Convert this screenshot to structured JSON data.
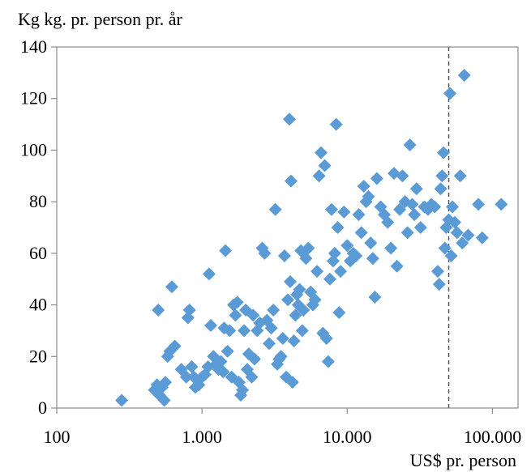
{
  "chart_data": {
    "type": "scatter",
    "title": "",
    "ylabel": "Kg kg. pr. person pr. år",
    "xlabel": "US$ pr. person",
    "xscale": "log",
    "xlim": [
      100,
      150000
    ],
    "ylim": [
      0,
      140
    ],
    "xticks": [
      100,
      1000,
      10000,
      100000
    ],
    "xtick_labels": [
      "100",
      "1.000",
      "10.000",
      "100.000"
    ],
    "yticks": [
      0,
      20,
      40,
      60,
      80,
      100,
      120,
      140
    ],
    "ytick_labels": [
      "0",
      "20",
      "40",
      "60",
      "80",
      "100",
      "120",
      "140"
    ],
    "grid": false,
    "marker": "diamond",
    "marker_color": "#5b9bd5",
    "reference_line": {
      "x": 50000,
      "style": "dashed",
      "color": "#555555"
    },
    "points": [
      [
        280,
        3
      ],
      [
        470,
        7
      ],
      [
        490,
        9
      ],
      [
        510,
        5
      ],
      [
        530,
        8
      ],
      [
        550,
        3
      ],
      [
        560,
        10
      ],
      [
        580,
        20
      ],
      [
        600,
        22
      ],
      [
        620,
        47
      ],
      [
        500,
        38
      ],
      [
        650,
        24
      ],
      [
        720,
        15
      ],
      [
        780,
        12
      ],
      [
        800,
        35
      ],
      [
        820,
        38
      ],
      [
        850,
        16
      ],
      [
        880,
        12
      ],
      [
        900,
        8
      ],
      [
        950,
        9
      ],
      [
        1000,
        12
      ],
      [
        1050,
        13
      ],
      [
        1100,
        16
      ],
      [
        1120,
        52
      ],
      [
        1150,
        32
      ],
      [
        1200,
        20
      ],
      [
        1250,
        17
      ],
      [
        1300,
        15
      ],
      [
        1350,
        18
      ],
      [
        1400,
        14
      ],
      [
        1420,
        31
      ],
      [
        1450,
        61
      ],
      [
        1500,
        22
      ],
      [
        1550,
        30
      ],
      [
        1600,
        12
      ],
      [
        1650,
        40
      ],
      [
        1700,
        36
      ],
      [
        1750,
        41
      ],
      [
        1800,
        10
      ],
      [
        1850,
        5
      ],
      [
        1900,
        7
      ],
      [
        1950,
        30
      ],
      [
        2000,
        38
      ],
      [
        2050,
        15
      ],
      [
        2100,
        21
      ],
      [
        2200,
        12
      ],
      [
        2250,
        36
      ],
      [
        2300,
        19
      ],
      [
        2400,
        30
      ],
      [
        2500,
        33
      ],
      [
        2600,
        62
      ],
      [
        2700,
        60
      ],
      [
        2800,
        34
      ],
      [
        2900,
        25
      ],
      [
        3000,
        31
      ],
      [
        3100,
        38
      ],
      [
        3200,
        77
      ],
      [
        3300,
        17
      ],
      [
        3400,
        19
      ],
      [
        3500,
        20
      ],
      [
        3600,
        27
      ],
      [
        3700,
        59
      ],
      [
        3800,
        12
      ],
      [
        3900,
        42
      ],
      [
        4000,
        112
      ],
      [
        4050,
        49
      ],
      [
        4100,
        88
      ],
      [
        4200,
        10
      ],
      [
        4300,
        26
      ],
      [
        4400,
        36
      ],
      [
        4500,
        44
      ],
      [
        4600,
        40
      ],
      [
        4700,
        46
      ],
      [
        4800,
        61
      ],
      [
        4900,
        30
      ],
      [
        5000,
        38
      ],
      [
        5200,
        58
      ],
      [
        5400,
        62
      ],
      [
        5600,
        45
      ],
      [
        5800,
        40
      ],
      [
        6000,
        42
      ],
      [
        6200,
        53
      ],
      [
        6400,
        90
      ],
      [
        6600,
        99
      ],
      [
        6800,
        29
      ],
      [
        7000,
        94
      ],
      [
        7200,
        27
      ],
      [
        7400,
        18
      ],
      [
        7600,
        50
      ],
      [
        7800,
        77
      ],
      [
        8000,
        57
      ],
      [
        8200,
        60
      ],
      [
        8400,
        110
      ],
      [
        8600,
        70
      ],
      [
        8800,
        37
      ],
      [
        9000,
        53
      ],
      [
        9500,
        76
      ],
      [
        10000,
        63
      ],
      [
        10500,
        57
      ],
      [
        11000,
        60
      ],
      [
        11500,
        59
      ],
      [
        12000,
        75
      ],
      [
        12500,
        68
      ],
      [
        13000,
        86
      ],
      [
        13500,
        80
      ],
      [
        14000,
        82
      ],
      [
        14500,
        64
      ],
      [
        15000,
        58
      ],
      [
        15500,
        43
      ],
      [
        16000,
        89
      ],
      [
        17000,
        78
      ],
      [
        18000,
        75
      ],
      [
        19000,
        72
      ],
      [
        20000,
        62
      ],
      [
        21000,
        91
      ],
      [
        22000,
        55
      ],
      [
        23000,
        77
      ],
      [
        24000,
        90
      ],
      [
        25000,
        80
      ],
      [
        26000,
        68
      ],
      [
        27000,
        102
      ],
      [
        28000,
        79
      ],
      [
        29000,
        75
      ],
      [
        30000,
        85
      ],
      [
        32000,
        70
      ],
      [
        34000,
        78
      ],
      [
        36000,
        77
      ],
      [
        38000,
        79
      ],
      [
        40000,
        78
      ],
      [
        42000,
        53
      ],
      [
        43000,
        48
      ],
      [
        44000,
        85
      ],
      [
        45000,
        90
      ],
      [
        46000,
        99
      ],
      [
        47000,
        62
      ],
      [
        48000,
        70
      ],
      [
        50000,
        73
      ],
      [
        51000,
        122
      ],
      [
        52000,
        59
      ],
      [
        53000,
        78
      ],
      [
        55000,
        72
      ],
      [
        57000,
        68
      ],
      [
        60000,
        90
      ],
      [
        62000,
        64
      ],
      [
        64000,
        129
      ],
      [
        68000,
        67
      ],
      [
        80000,
        79
      ],
      [
        85000,
        66
      ],
      [
        115000,
        79
      ]
    ]
  }
}
